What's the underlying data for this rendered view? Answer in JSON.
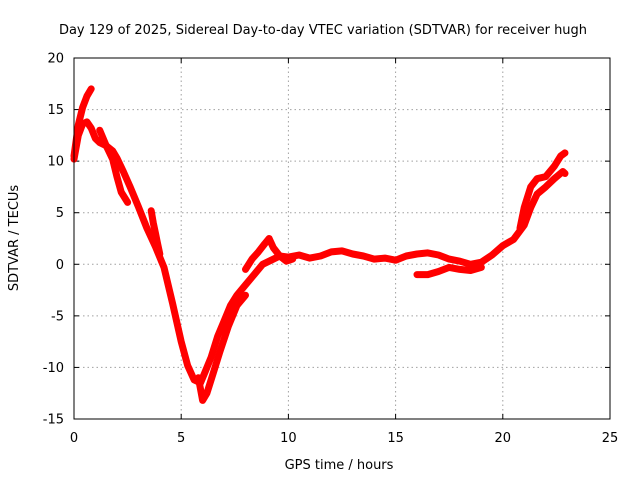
{
  "chart_data": {
    "type": "line",
    "title": "Day 129 of 2025, Sidereal Day-to-day VTEC variation (SDTVAR) for receiver hugh",
    "xlabel": "GPS time / hours",
    "ylabel": "SDTVAR / TECUs",
    "xlim": [
      0,
      25
    ],
    "ylim": [
      -15,
      20
    ],
    "xticks": [
      0,
      5,
      10,
      15,
      20,
      25
    ],
    "yticks": [
      -15,
      -10,
      -5,
      0,
      5,
      10,
      15,
      20
    ],
    "xtick_labels": [
      "0",
      "5",
      "10",
      "15",
      "20",
      "25"
    ],
    "ytick_labels": [
      "-15",
      "-10",
      "-5",
      "0",
      "5",
      "10",
      "15",
      "20"
    ],
    "grid": true,
    "legend": "none",
    "marker": "plus",
    "series_color": "#ff0000",
    "series": [
      {
        "x": [
          0.0,
          0.2,
          0.4,
          0.6,
          0.8,
          1.0,
          1.2,
          1.5,
          1.8,
          2.0,
          2.3,
          2.6,
          3.0,
          3.4,
          3.8,
          4.2,
          4.6,
          5.0,
          5.3,
          5.6,
          5.9,
          6.1,
          6.4,
          6.7,
          7.0,
          7.3,
          7.6,
          8.0,
          8.4,
          8.8,
          9.2,
          9.6,
          10.0,
          10.5,
          11.0,
          11.5,
          12.0,
          12.5,
          13.0,
          13.5,
          14.0,
          14.5,
          15.0,
          15.5,
          16.0,
          16.5,
          17.0,
          17.5,
          18.0,
          18.5,
          19.0,
          19.5,
          20.0,
          20.5,
          21.0,
          21.3,
          21.6,
          22.0,
          22.4,
          22.8,
          22.9
        ],
        "y": [
          10.2,
          12.5,
          13.6,
          13.8,
          13.2,
          12.2,
          11.8,
          11.5,
          11.0,
          10.3,
          9.0,
          7.6,
          5.6,
          3.5,
          1.7,
          -0.3,
          -3.8,
          -7.5,
          -9.8,
          -11.2,
          -11.5,
          -10.5,
          -9.0,
          -7.0,
          -5.5,
          -4.0,
          -3.0,
          -2.0,
          -1.0,
          0.0,
          0.4,
          0.8,
          0.7,
          0.9,
          0.6,
          0.8,
          1.2,
          1.3,
          1.0,
          0.8,
          0.5,
          0.6,
          0.4,
          0.8,
          1.0,
          1.1,
          0.9,
          0.5,
          0.3,
          0.0,
          0.2,
          0.9,
          1.8,
          2.4,
          3.8,
          5.5,
          6.8,
          7.5,
          8.3,
          9.0,
          8.8
        ]
      },
      {
        "x": [
          0.0,
          0.2,
          0.4,
          0.6,
          0.8
        ],
        "y": [
          10.5,
          13.5,
          15.2,
          16.3,
          17.0
        ]
      },
      {
        "x": [
          1.2,
          1.5,
          1.8,
          2.0,
          2.2,
          2.5
        ],
        "y": [
          13.0,
          11.5,
          10.2,
          8.5,
          7.0,
          6.0
        ]
      },
      {
        "x": [
          3.6,
          3.7,
          3.8,
          3.9,
          4.0
        ],
        "y": [
          5.2,
          4.0,
          3.0,
          2.0,
          1.0
        ]
      },
      {
        "x": [
          5.8,
          6.0,
          6.2,
          6.5,
          6.8,
          7.2,
          7.6,
          8.0
        ],
        "y": [
          -11.0,
          -13.2,
          -12.5,
          -10.5,
          -8.5,
          -6.0,
          -4.0,
          -3.0
        ]
      },
      {
        "x": [
          8.0,
          8.3,
          8.6,
          8.9,
          9.1,
          9.3,
          9.6,
          9.9,
          10.2
        ],
        "y": [
          -0.5,
          0.5,
          1.2,
          2.0,
          2.5,
          1.6,
          0.8,
          0.3,
          0.5
        ]
      },
      {
        "x": [
          16.0,
          16.5,
          17.0,
          17.5,
          18.0,
          18.5,
          19.0
        ],
        "y": [
          -1.0,
          -1.0,
          -0.7,
          -0.3,
          -0.5,
          -0.6,
          -0.3
        ]
      },
      {
        "x": [
          20.8,
          21.0,
          21.3,
          21.6,
          22.0,
          22.4,
          22.7,
          22.9
        ],
        "y": [
          3.5,
          5.5,
          7.5,
          8.3,
          8.5,
          9.5,
          10.5,
          10.8
        ]
      }
    ]
  }
}
